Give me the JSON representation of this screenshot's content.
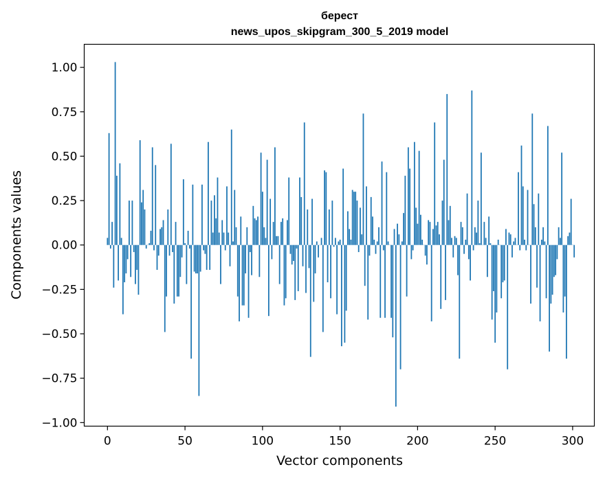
{
  "chart_data": {
    "type": "bar",
    "title_line1": "берест",
    "title_line2": "news_upos_skipgram_300_5_2019 model",
    "xlabel": "Vector components",
    "ylabel": "Components values",
    "xlim": [
      -15,
      314
    ],
    "ylim": [
      -1.02,
      1.13
    ],
    "xticks": [
      0,
      50,
      100,
      150,
      200,
      250,
      300
    ],
    "yticks": [
      1.0,
      0.75,
      0.5,
      0.25,
      0.0,
      -0.25,
      -0.5,
      -0.75,
      -1.0
    ],
    "ytick_labels": [
      "1.00",
      "0.75",
      "0.50",
      "0.25",
      "0.00",
      "−0.25",
      "−0.50",
      "−0.75",
      "−1.00"
    ],
    "bar_color": "#1f77b4",
    "values": [
      0.04,
      0.63,
      -0.02,
      0.13,
      -0.24,
      1.03,
      0.39,
      -0.2,
      0.46,
      0.04,
      -0.39,
      -0.21,
      -0.16,
      -0.08,
      0.25,
      -0.18,
      0.25,
      -0.04,
      -0.22,
      -0.14,
      -0.28,
      0.59,
      0.24,
      0.31,
      0.2,
      -0.02,
      0.0,
      0.01,
      0.08,
      0.55,
      -0.03,
      0.45,
      -0.14,
      -0.06,
      0.09,
      0.1,
      0.14,
      -0.49,
      -0.29,
      0.2,
      -0.06,
      0.57,
      -0.04,
      -0.33,
      0.13,
      -0.29,
      -0.29,
      -0.18,
      -0.07,
      0.37,
      0.01,
      -0.22,
      0.08,
      -0.02,
      -0.64,
      0.34,
      -0.15,
      -0.16,
      -0.16,
      -0.85,
      -0.15,
      0.34,
      -0.03,
      -0.05,
      -0.14,
      0.58,
      -0.14,
      0.25,
      0.07,
      0.28,
      0.15,
      0.38,
      0.07,
      -0.22,
      0.14,
      0.07,
      -0.03,
      0.33,
      0.07,
      -0.12,
      0.65,
      0.02,
      0.31,
      0.1,
      -0.29,
      -0.43,
      0.16,
      -0.34,
      -0.34,
      -0.16,
      0.1,
      -0.41,
      -0.04,
      -0.17,
      0.22,
      0.15,
      0.14,
      0.16,
      -0.18,
      0.52,
      0.3,
      0.1,
      0.04,
      0.48,
      -0.4,
      0.26,
      -0.08,
      0.13,
      0.55,
      0.05,
      0.05,
      -0.22,
      0.13,
      0.15,
      -0.34,
      -0.3,
      0.14,
      0.38,
      -0.05,
      -0.11,
      -0.09,
      -0.31,
      -0.02,
      -0.26,
      0.38,
      0.27,
      -0.12,
      0.69,
      -0.27,
      0.2,
      -0.13,
      -0.63,
      0.26,
      -0.32,
      -0.16,
      0.02,
      -0.07,
      0.0,
      0.04,
      -0.49,
      0.42,
      0.41,
      -0.21,
      0.2,
      -0.3,
      0.25,
      -0.01,
      0.04,
      -0.39,
      0.02,
      0.03,
      -0.57,
      0.43,
      -0.55,
      -0.37,
      0.19,
      0.09,
      0.03,
      0.31,
      0.3,
      0.3,
      0.25,
      -0.04,
      0.21,
      0.06,
      0.74,
      -0.23,
      0.33,
      -0.42,
      -0.06,
      0.27,
      0.16,
      0.03,
      -0.05,
      0.02,
      0.1,
      -0.41,
      0.47,
      -0.03,
      -0.41,
      0.41,
      0.02,
      0.0,
      -0.41,
      -0.52,
      0.09,
      -0.91,
      0.12,
      0.06,
      -0.7,
      0.02,
      0.18,
      0.39,
      -0.29,
      0.55,
      0.43,
      -0.08,
      -0.03,
      0.58,
      0.21,
      0.12,
      0.53,
      0.17,
      0.03,
      0.0,
      -0.06,
      -0.11,
      0.14,
      0.13,
      -0.43,
      0.09,
      0.69,
      0.11,
      0.13,
      0.06,
      -0.36,
      0.25,
      0.48,
      -0.31,
      0.85,
      0.14,
      0.22,
      0.04,
      -0.07,
      0.05,
      0.04,
      -0.17,
      -0.64,
      0.13,
      0.1,
      -0.05,
      0.03,
      0.29,
      -0.08,
      -0.2,
      0.87,
      -0.03,
      0.1,
      0.07,
      0.25,
      0.01,
      0.52,
      0.0,
      0.13,
      0.04,
      -0.18,
      0.16,
      0.01,
      -0.42,
      -0.26,
      -0.55,
      -0.38,
      0.03,
      0.0,
      -0.3,
      -0.21,
      -0.2,
      0.09,
      -0.7,
      0.07,
      0.06,
      -0.07,
      0.02,
      0.04,
      0.0,
      0.41,
      -0.03,
      0.56,
      0.33,
      0.03,
      -0.03,
      0.31,
      0.0,
      -0.33,
      0.74,
      0.23,
      0.1,
      -0.24,
      0.29,
      -0.43,
      0.03,
      0.1,
      0.02,
      -0.3,
      0.67,
      -0.6,
      -0.33,
      -0.28,
      -0.18,
      -0.17,
      -0.08,
      0.1,
      0.04,
      0.52,
      -0.38,
      -0.29,
      -0.64,
      0.05,
      0.07,
      0.26,
      0.0,
      -0.07
    ]
  }
}
